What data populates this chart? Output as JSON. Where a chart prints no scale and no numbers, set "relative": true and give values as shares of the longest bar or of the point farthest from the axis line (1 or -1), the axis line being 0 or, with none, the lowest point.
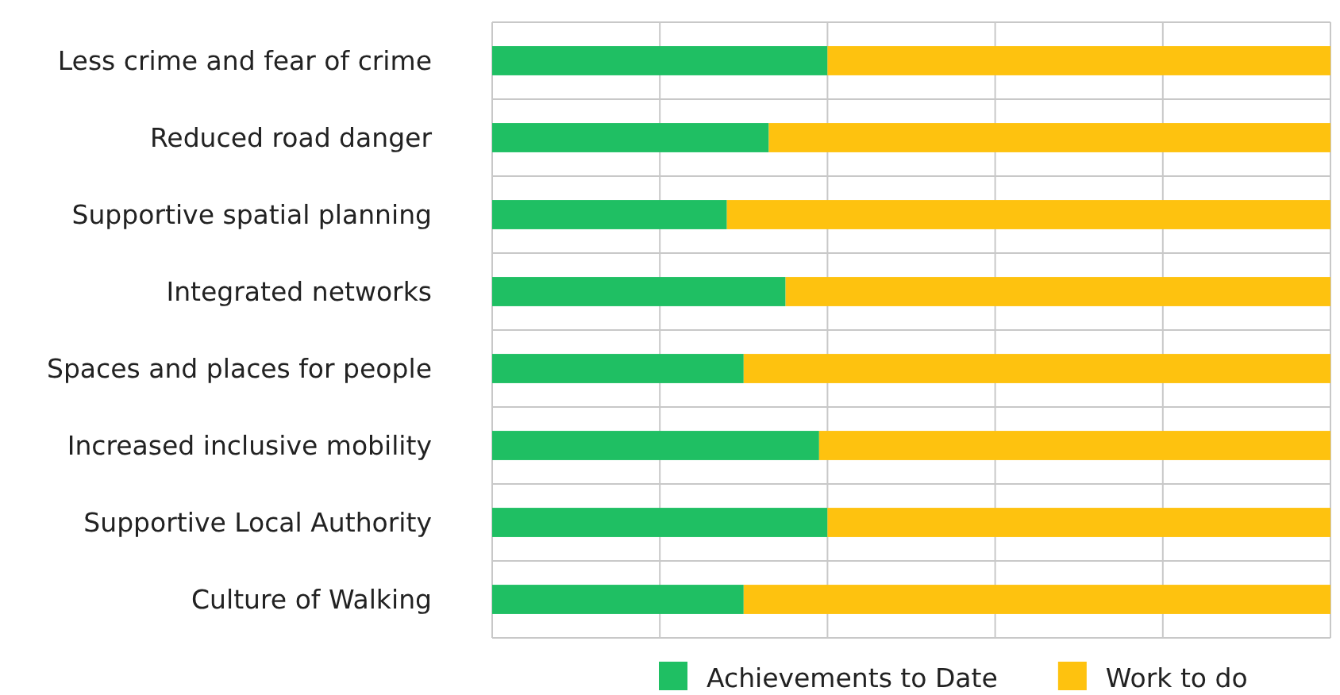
{
  "chart_data": {
    "type": "bar",
    "orientation": "horizontal",
    "stacked": true,
    "relative": true,
    "grid": true,
    "legend": "bottom",
    "categories": [
      "Less crime and fear of crime",
      "Reduced road danger",
      "Supportive spatial planning",
      "Integrated networks",
      "Spaces and places for people",
      "Increased inclusive mobility",
      "Supportive Local Authority",
      "Culture of Walking"
    ],
    "series": [
      {
        "name": "Achievements to Date",
        "color": "#1fbf63",
        "values": [
          0.4,
          0.33,
          0.28,
          0.35,
          0.3,
          0.39,
          0.4,
          0.3
        ]
      },
      {
        "name": "Work to do",
        "color": "#fec20f",
        "values": [
          0.6,
          0.67,
          0.72,
          0.65,
          0.7,
          0.61,
          0.6,
          0.7
        ]
      }
    ]
  }
}
